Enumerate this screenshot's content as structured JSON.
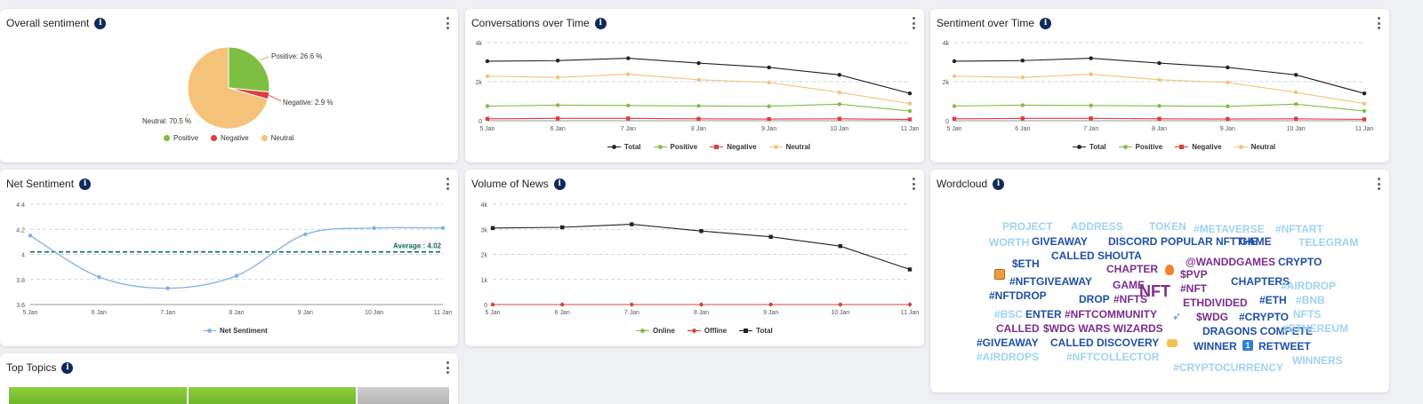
{
  "colors": {
    "total": "#222222",
    "positive": "#7dbf43",
    "negative": "#e03c3c",
    "neutral": "#f5c27a",
    "net": "#7fb2e0",
    "average": "#0f6b5f",
    "online": "#7dbf43",
    "offline": "#e03c3c"
  },
  "overall": {
    "title": "Overall sentiment",
    "legend": [
      "Positive",
      "Negative",
      "Neutral"
    ],
    "labels": {
      "positive": "Positive: 26.6 %",
      "negative": "Negative: 2.9 %",
      "neutral": "Neutral: 70.5 %"
    }
  },
  "conversations": {
    "title": "Conversations over Time",
    "legend": [
      "Total",
      "Positive",
      "Negative",
      "Neutral"
    ]
  },
  "sentiment_time": {
    "title": "Sentiment over Time",
    "legend": [
      "Total",
      "Positive",
      "Negative",
      "Neutral"
    ]
  },
  "net": {
    "title": "Net Sentiment",
    "average_label": "Average : 4.02",
    "legend": [
      "Net Sentiment"
    ]
  },
  "volume": {
    "title": "Volume of News",
    "legend": [
      "Online",
      "Offline",
      "Total"
    ]
  },
  "wordcloud": {
    "title": "Wordcloud",
    "words": [
      {
        "t": "PROJECT",
        "c": "#9fd3f0"
      },
      {
        "t": "ADDRESS",
        "c": "#9fd3f0"
      },
      {
        "t": "TOKEN",
        "c": "#9fd3f0"
      },
      {
        "t": "#METAVERSE",
        "c": "#9fd3f0"
      },
      {
        "t": "#NFTART",
        "c": "#9fd3f0"
      },
      {
        "t": "WORTH",
        "c": "#9fd3f0"
      },
      {
        "t": "GIVEAWAY",
        "c": "#1f4fa8"
      },
      {
        "t": "DISCORD",
        "c": "#1f4fa8"
      },
      {
        "t": "POPULAR NFT GAME",
        "c": "#1f4fa8"
      },
      {
        "t": "THE",
        "c": "#1f4fa8"
      },
      {
        "t": "TELEGRAM",
        "c": "#9fd3f0"
      },
      {
        "t": "CALLED SHOUTA",
        "c": "#1f4fa8"
      },
      {
        "t": "$ETH",
        "c": "#1f4fa8"
      },
      {
        "t": "CHAPTER",
        "c": "#7b2d8e"
      },
      {
        "t": "@WANDDGAMES",
        "c": "#7b2d8e"
      },
      {
        "t": "CRYPTO",
        "c": "#1f4fa8"
      },
      {
        "t": "$PVP",
        "c": "#7b2d8e"
      },
      {
        "t": "#NFTGIVEAWAY",
        "c": "#1f4fa8"
      },
      {
        "t": "GAME",
        "c": "#7b2d8e"
      },
      {
        "t": "NFT",
        "c": "#7b2d8e"
      },
      {
        "t": "#NFT",
        "c": "#7b2d8e"
      },
      {
        "t": "CHAPTERS",
        "c": "#1f4fa8"
      },
      {
        "t": "#AIRDROP",
        "c": "#9fd3f0"
      },
      {
        "t": "#NFTDROP",
        "c": "#1f4fa8"
      },
      {
        "t": "DROP",
        "c": "#1f4fa8"
      },
      {
        "t": "#NFTS",
        "c": "#7b2d8e"
      },
      {
        "t": "ETHDIVIDED",
        "c": "#7b2d8e"
      },
      {
        "t": "#ETH",
        "c": "#1f4fa8"
      },
      {
        "t": "#BNB",
        "c": "#9fd3f0"
      },
      {
        "t": "#BSC",
        "c": "#9fd3f0"
      },
      {
        "t": "ENTER",
        "c": "#1f4fa8"
      },
      {
        "t": "#NFTCOMMUNITY",
        "c": "#7b2d8e"
      },
      {
        "t": "$WDG",
        "c": "#7b2d8e"
      },
      {
        "t": "#CRYPTO",
        "c": "#1f4fa8"
      },
      {
        "t": "NFTS",
        "c": "#9fd3f0"
      },
      {
        "t": "CALLED",
        "c": "#7b2d8e"
      },
      {
        "t": "$WDG WARS WIZARDS",
        "c": "#7b2d8e"
      },
      {
        "t": "DRAGONS COMPETE",
        "c": "#1f4fa8"
      },
      {
        "t": "#ETHEREUM",
        "c": "#9fd3f0"
      },
      {
        "t": "#GIVEAWAY",
        "c": "#1f4fa8"
      },
      {
        "t": "CALLED DISCOVERY",
        "c": "#1f4fa8"
      },
      {
        "t": "WINNER",
        "c": "#1f4fa8"
      },
      {
        "t": "RETWEET",
        "c": "#1f4fa8"
      },
      {
        "t": "#AIRDROPS",
        "c": "#9fd3f0"
      },
      {
        "t": "#NFTCOLLECTOR",
        "c": "#9fd3f0"
      },
      {
        "t": "#CRYPTOCURRENCY",
        "c": "#9fd3f0"
      },
      {
        "t": "WINNERS",
        "c": "#9fd3f0"
      }
    ]
  },
  "top_topics": {
    "title": "Top Topics"
  },
  "chart_data": [
    {
      "type": "pie",
      "labels": [
        "Positive",
        "Negative",
        "Neutral"
      ],
      "values": [
        26.6,
        2.9,
        70.5
      ]
    },
    {
      "type": "line",
      "categories": [
        "5 Jan",
        "6 Jan",
        "7 Jan",
        "8 Jan",
        "9 Jan",
        "10 Jan",
        "11 Jan"
      ],
      "ylim": [
        0,
        4000
      ],
      "yticks": [
        "0",
        "2k",
        "4k"
      ],
      "series": [
        {
          "name": "Total",
          "values": [
            3050,
            3080,
            3200,
            2950,
            2730,
            2350,
            1400
          ]
        },
        {
          "name": "Positive",
          "values": [
            750,
            800,
            780,
            760,
            740,
            850,
            500
          ]
        },
        {
          "name": "Negative",
          "values": [
            100,
            120,
            120,
            100,
            90,
            100,
            70
          ]
        },
        {
          "name": "Neutral",
          "values": [
            2280,
            2220,
            2380,
            2100,
            1960,
            1450,
            880
          ]
        }
      ]
    },
    {
      "type": "line",
      "categories": [
        "5 Jan",
        "6 Jan",
        "7 Jan",
        "8 Jan",
        "9 Jan",
        "10 Jan",
        "11 Jan"
      ],
      "ylim": [
        0,
        4000
      ],
      "yticks": [
        "0",
        "2k",
        "4k"
      ],
      "series": [
        {
          "name": "Total",
          "values": [
            3050,
            3080,
            3200,
            2950,
            2730,
            2350,
            1400
          ]
        },
        {
          "name": "Positive",
          "values": [
            750,
            800,
            780,
            760,
            740,
            850,
            500
          ]
        },
        {
          "name": "Negative",
          "values": [
            100,
            120,
            120,
            100,
            90,
            100,
            70
          ]
        },
        {
          "name": "Neutral",
          "values": [
            2280,
            2220,
            2380,
            2100,
            1960,
            1450,
            880
          ]
        }
      ]
    },
    {
      "type": "line",
      "categories": [
        "5 Jan",
        "6 Jan",
        "7 Jan",
        "8 Jan",
        "9 Jan",
        "10 Jan",
        "11 Jan"
      ],
      "ylim": [
        3.6,
        4.4
      ],
      "yticks": [
        "3.6",
        "3.8",
        "4",
        "4.2",
        "4.4"
      ],
      "average": 4.02,
      "series": [
        {
          "name": "Net Sentiment",
          "values": [
            4.15,
            3.82,
            3.73,
            3.83,
            4.16,
            4.21,
            4.21
          ]
        }
      ]
    },
    {
      "type": "line",
      "categories": [
        "5 Jan",
        "6 Jan",
        "7 Jan",
        "8 Jan",
        "9 Jan",
        "10 Jan",
        "11 Jan"
      ],
      "ylim": [
        0,
        4000
      ],
      "yticks": [
        "0",
        "1k",
        "2k",
        "3k",
        "4k"
      ],
      "series": [
        {
          "name": "Online",
          "values": [
            0,
            0,
            0,
            0,
            0,
            0,
            0
          ]
        },
        {
          "name": "Offline",
          "values": [
            0,
            0,
            0,
            0,
            0,
            0,
            0
          ]
        },
        {
          "name": "Total",
          "values": [
            3050,
            3080,
            3200,
            2930,
            2700,
            2330,
            1400
          ]
        }
      ]
    }
  ]
}
